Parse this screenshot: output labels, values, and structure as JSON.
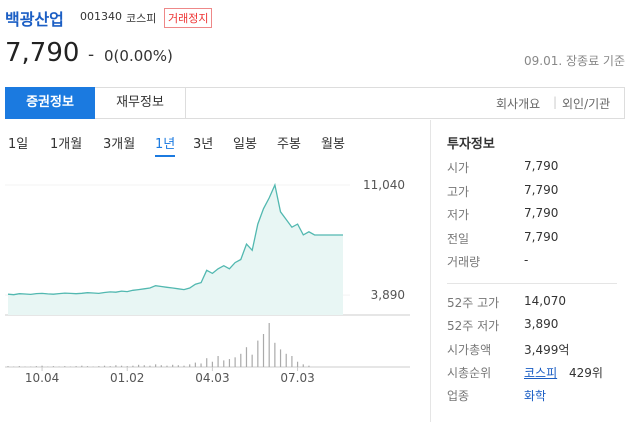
{
  "header": {
    "name": "백광산업",
    "code": "001340",
    "market": "코스피",
    "status": "거래정지"
  },
  "price": {
    "current": "7,790",
    "sign": "-",
    "change": "0(0.00%)",
    "as_of": "09.01. 장종료 기준"
  },
  "tabs": [
    "증권정보",
    "재무정보"
  ],
  "links": [
    "회사개요",
    "외인/기관"
  ],
  "periods": [
    "1일",
    "1개월",
    "3개월",
    "1년",
    "3년",
    "일봉",
    "주봉",
    "월봉"
  ],
  "chart_data": {
    "type": "line",
    "color": "#52b8b0",
    "ylim": [
      2600,
      12660
    ],
    "yticks": [
      {
        "value": 11040,
        "label": "11,040"
      },
      {
        "value": 3890,
        "label": "3,890"
      }
    ],
    "xticks": [
      {
        "value": 6,
        "label": "10.04"
      },
      {
        "value": 21,
        "label": "01.02"
      },
      {
        "value": 36,
        "label": "04.03"
      },
      {
        "value": 51,
        "label": "07.03"
      }
    ],
    "xlim": [
      0,
      59
    ],
    "values": [
      3950,
      3920,
      3980,
      3960,
      3940,
      3990,
      4000,
      3970,
      3950,
      3990,
      4020,
      4000,
      3980,
      4010,
      4050,
      4030,
      4000,
      4060,
      4100,
      4080,
      4150,
      4120,
      4200,
      4250,
      4300,
      4350,
      4500,
      4450,
      4400,
      4350,
      4300,
      4250,
      4350,
      4600,
      4700,
      5500,
      5300,
      5600,
      5800,
      5600,
      6000,
      6200,
      7200,
      6800,
      8500,
      9500,
      10200,
      11040,
      9300,
      8800,
      8300,
      8500,
      7800,
      8000,
      7790,
      7790,
      7790,
      7790,
      7790,
      7790
    ],
    "volume": [
      2,
      1,
      2,
      1,
      1,
      2,
      3,
      1,
      2,
      1,
      2,
      1,
      2,
      3,
      2,
      1,
      2,
      3,
      2,
      4,
      3,
      2,
      3,
      5,
      4,
      3,
      6,
      4,
      3,
      5,
      4,
      3,
      6,
      10,
      8,
      20,
      12,
      25,
      15,
      18,
      22,
      30,
      45,
      28,
      60,
      75,
      100,
      55,
      40,
      30,
      25,
      12,
      6,
      3,
      0,
      0,
      0,
      0,
      0,
      0
    ],
    "volume_ylim": [
      0,
      100
    ]
  },
  "info": {
    "title": "투자정보",
    "rows": [
      [
        "시가",
        "7,790"
      ],
      [
        "고가",
        "7,790"
      ],
      [
        "저가",
        "7,790"
      ],
      [
        "전일",
        "7,790"
      ],
      [
        "거래량",
        "-"
      ]
    ],
    "rows2": [
      [
        "52주 고가",
        "14,070"
      ],
      [
        "52주 저가",
        "3,890"
      ],
      [
        "시가총액",
        "3,499억"
      ],
      [
        "시총순위",
        "코스피",
        "429위"
      ],
      [
        "업종",
        "화학"
      ]
    ]
  }
}
